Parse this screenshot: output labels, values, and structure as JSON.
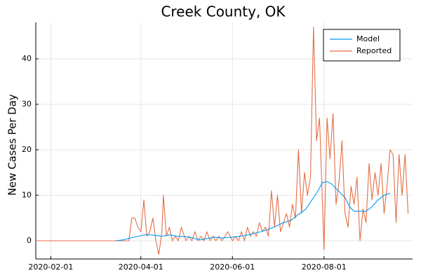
{
  "chart_data": {
    "type": "line",
    "title": "Creek County, OK",
    "xlabel": "",
    "ylabel": "New Cases Per Day",
    "x_axis_type": "date",
    "x_range": [
      "2020-01-22",
      "2020-09-29"
    ],
    "y_range": [
      -4,
      48
    ],
    "x_ticks": [
      "2020-02-01",
      "2020-04-01",
      "2020-06-01",
      "2020-08-01"
    ],
    "y_ticks": [
      0,
      10,
      20,
      30,
      40
    ],
    "grid": true,
    "legend_position": "top-right",
    "series": [
      {
        "name": "Model",
        "color": "#009af9",
        "points": [
          [
            "2020-03-15",
            0
          ],
          [
            "2020-03-20",
            0.2
          ],
          [
            "2020-03-25",
            0.6
          ],
          [
            "2020-03-30",
            1.0
          ],
          [
            "2020-04-05",
            1.4
          ],
          [
            "2020-04-10",
            1.2
          ],
          [
            "2020-04-15",
            1.0
          ],
          [
            "2020-04-20",
            1.3
          ],
          [
            "2020-04-25",
            1.0
          ],
          [
            "2020-05-01",
            0.9
          ],
          [
            "2020-05-06",
            0.6
          ],
          [
            "2020-05-10",
            0.2
          ],
          [
            "2020-05-15",
            0.5
          ],
          [
            "2020-05-20",
            0.8
          ],
          [
            "2020-05-25",
            0.6
          ],
          [
            "2020-06-01",
            0.8
          ],
          [
            "2020-06-06",
            1.0
          ],
          [
            "2020-06-10",
            1.2
          ],
          [
            "2020-06-15",
            1.6
          ],
          [
            "2020-06-20",
            2.0
          ],
          [
            "2020-06-25",
            2.5
          ],
          [
            "2020-06-30",
            3.2
          ],
          [
            "2020-07-05",
            4.0
          ],
          [
            "2020-07-10",
            4.5
          ],
          [
            "2020-07-15",
            5.8
          ],
          [
            "2020-07-20",
            7.0
          ],
          [
            "2020-07-25",
            9.5
          ],
          [
            "2020-07-28",
            11.0
          ],
          [
            "2020-07-31",
            12.8
          ],
          [
            "2020-08-03",
            13.0
          ],
          [
            "2020-08-06",
            12.5
          ],
          [
            "2020-08-09",
            11.5
          ],
          [
            "2020-08-12",
            10.5
          ],
          [
            "2020-08-15",
            9.5
          ],
          [
            "2020-08-18",
            7.5
          ],
          [
            "2020-08-21",
            6.5
          ],
          [
            "2020-08-25",
            6.5
          ],
          [
            "2020-08-29",
            6.5
          ],
          [
            "2020-09-02",
            7.5
          ],
          [
            "2020-09-06",
            9.0
          ],
          [
            "2020-09-10",
            10.0
          ],
          [
            "2020-09-14",
            10.5
          ]
        ]
      },
      {
        "name": "Reported",
        "color": "#e26f46",
        "points": [
          [
            "2020-01-22",
            0
          ],
          [
            "2020-03-24",
            0
          ],
          [
            "2020-03-26",
            5
          ],
          [
            "2020-03-28",
            5
          ],
          [
            "2020-03-30",
            3
          ],
          [
            "2020-04-01",
            2
          ],
          [
            "2020-04-03",
            9
          ],
          [
            "2020-04-05",
            1
          ],
          [
            "2020-04-07",
            2
          ],
          [
            "2020-04-09",
            5
          ],
          [
            "2020-04-11",
            0
          ],
          [
            "2020-04-13",
            -3
          ],
          [
            "2020-04-15",
            2
          ],
          [
            "2020-04-16",
            10
          ],
          [
            "2020-04-18",
            1
          ],
          [
            "2020-04-20",
            3
          ],
          [
            "2020-04-22",
            0
          ],
          [
            "2020-04-24",
            1
          ],
          [
            "2020-04-26",
            0
          ],
          [
            "2020-04-28",
            3
          ],
          [
            "2020-05-01",
            0
          ],
          [
            "2020-05-03",
            1
          ],
          [
            "2020-05-05",
            0
          ],
          [
            "2020-05-07",
            2
          ],
          [
            "2020-05-09",
            0
          ],
          [
            "2020-05-11",
            1
          ],
          [
            "2020-05-13",
            0
          ],
          [
            "2020-05-15",
            2
          ],
          [
            "2020-05-17",
            0
          ],
          [
            "2020-05-19",
            1
          ],
          [
            "2020-05-21",
            0
          ],
          [
            "2020-05-23",
            1
          ],
          [
            "2020-05-25",
            0
          ],
          [
            "2020-05-27",
            1
          ],
          [
            "2020-05-29",
            2
          ],
          [
            "2020-06-01",
            0
          ],
          [
            "2020-06-03",
            1
          ],
          [
            "2020-06-05",
            0
          ],
          [
            "2020-06-07",
            2
          ],
          [
            "2020-06-09",
            0
          ],
          [
            "2020-06-11",
            3
          ],
          [
            "2020-06-13",
            1
          ],
          [
            "2020-06-15",
            2
          ],
          [
            "2020-06-17",
            1
          ],
          [
            "2020-06-19",
            4
          ],
          [
            "2020-06-21",
            2
          ],
          [
            "2020-06-23",
            3
          ],
          [
            "2020-06-25",
            1
          ],
          [
            "2020-06-27",
            11
          ],
          [
            "2020-06-29",
            3
          ],
          [
            "2020-07-01",
            10
          ],
          [
            "2020-07-03",
            2
          ],
          [
            "2020-07-05",
            4
          ],
          [
            "2020-07-07",
            6
          ],
          [
            "2020-07-09",
            3
          ],
          [
            "2020-07-11",
            8
          ],
          [
            "2020-07-13",
            5
          ],
          [
            "2020-07-15",
            20
          ],
          [
            "2020-07-17",
            6
          ],
          [
            "2020-07-19",
            15
          ],
          [
            "2020-07-21",
            10
          ],
          [
            "2020-07-23",
            14
          ],
          [
            "2020-07-25",
            47
          ],
          [
            "2020-07-27",
            22
          ],
          [
            "2020-07-29",
            27
          ],
          [
            "2020-07-31",
            8
          ],
          [
            "2020-08-01",
            -2
          ],
          [
            "2020-08-03",
            27
          ],
          [
            "2020-08-05",
            18
          ],
          [
            "2020-08-07",
            28
          ],
          [
            "2020-08-09",
            8
          ],
          [
            "2020-08-11",
            13
          ],
          [
            "2020-08-13",
            22
          ],
          [
            "2020-08-15",
            6
          ],
          [
            "2020-08-17",
            3
          ],
          [
            "2020-08-19",
            12
          ],
          [
            "2020-08-21",
            8
          ],
          [
            "2020-08-23",
            14
          ],
          [
            "2020-08-25",
            0
          ],
          [
            "2020-08-27",
            7
          ],
          [
            "2020-08-29",
            4
          ],
          [
            "2020-08-31",
            17
          ],
          [
            "2020-09-02",
            9
          ],
          [
            "2020-09-04",
            15
          ],
          [
            "2020-09-06",
            10
          ],
          [
            "2020-09-08",
            17
          ],
          [
            "2020-09-10",
            6
          ],
          [
            "2020-09-12",
            12
          ],
          [
            "2020-09-14",
            20
          ],
          [
            "2020-09-16",
            19
          ],
          [
            "2020-09-18",
            4
          ],
          [
            "2020-09-20",
            19
          ],
          [
            "2020-09-22",
            10
          ],
          [
            "2020-09-24",
            19
          ],
          [
            "2020-09-26",
            6
          ]
        ]
      }
    ]
  }
}
